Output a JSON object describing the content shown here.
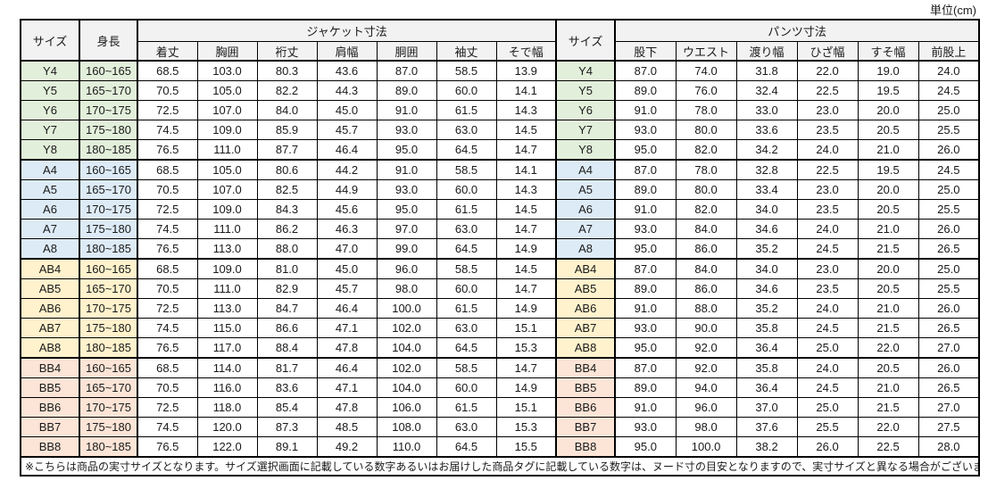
{
  "unit_label": "単位(cm)",
  "colors": {
    "header_bg": "#F2F2F2",
    "border": "#000000",
    "group_y": "#E2EFDA",
    "group_a": "#DDEBF7",
    "group_ab": "#FFF2CC",
    "group_bb": "#FCE4D6"
  },
  "table": {
    "size_header": "サイズ",
    "height_header": "身長",
    "jacket_section": "ジャケット寸法",
    "pants_section": "パンツ寸法",
    "jacket_columns": [
      "着丈",
      "胸囲",
      "裄丈",
      "肩幅",
      "胴囲",
      "袖丈",
      "そで幅"
    ],
    "pants_columns": [
      "股下",
      "ウエスト",
      "渡り幅",
      "ひざ幅",
      "すそ幅",
      "前股上"
    ],
    "groups": [
      {
        "name": "Y",
        "color": "#E2EFDA",
        "rows": [
          {
            "size": "Y4",
            "height": "160~165",
            "jacket": [
              "68.5",
              "103.0",
              "80.3",
              "43.6",
              "87.0",
              "58.5",
              "13.9"
            ],
            "pants": [
              "87.0",
              "74.0",
              "31.8",
              "22.0",
              "19.0",
              "24.0"
            ]
          },
          {
            "size": "Y5",
            "height": "165~170",
            "jacket": [
              "70.5",
              "105.0",
              "82.2",
              "44.3",
              "89.0",
              "60.0",
              "14.1"
            ],
            "pants": [
              "89.0",
              "76.0",
              "32.4",
              "22.5",
              "19.5",
              "24.5"
            ]
          },
          {
            "size": "Y6",
            "height": "170~175",
            "jacket": [
              "72.5",
              "107.0",
              "84.0",
              "45.0",
              "91.0",
              "61.5",
              "14.3"
            ],
            "pants": [
              "91.0",
              "78.0",
              "33.0",
              "23.0",
              "20.0",
              "25.0"
            ]
          },
          {
            "size": "Y7",
            "height": "175~180",
            "jacket": [
              "74.5",
              "109.0",
              "85.9",
              "45.7",
              "93.0",
              "63.0",
              "14.5"
            ],
            "pants": [
              "93.0",
              "80.0",
              "33.6",
              "23.5",
              "20.5",
              "25.5"
            ]
          },
          {
            "size": "Y8",
            "height": "180~185",
            "jacket": [
              "76.5",
              "111.0",
              "87.7",
              "46.4",
              "95.0",
              "64.5",
              "14.7"
            ],
            "pants": [
              "95.0",
              "82.0",
              "34.2",
              "24.0",
              "21.0",
              "26.0"
            ]
          }
        ]
      },
      {
        "name": "A",
        "color": "#DDEBF7",
        "rows": [
          {
            "size": "A4",
            "height": "160~165",
            "jacket": [
              "68.5",
              "105.0",
              "80.6",
              "44.2",
              "91.0",
              "58.5",
              "14.1"
            ],
            "pants": [
              "87.0",
              "78.0",
              "32.8",
              "22.5",
              "19.5",
              "24.5"
            ]
          },
          {
            "size": "A5",
            "height": "165~170",
            "jacket": [
              "70.5",
              "107.0",
              "82.5",
              "44.9",
              "93.0",
              "60.0",
              "14.3"
            ],
            "pants": [
              "89.0",
              "80.0",
              "33.4",
              "23.0",
              "20.0",
              "25.0"
            ]
          },
          {
            "size": "A6",
            "height": "170~175",
            "jacket": [
              "72.5",
              "109.0",
              "84.3",
              "45.6",
              "95.0",
              "61.5",
              "14.5"
            ],
            "pants": [
              "91.0",
              "82.0",
              "34.0",
              "23.5",
              "20.5",
              "25.5"
            ]
          },
          {
            "size": "A7",
            "height": "175~180",
            "jacket": [
              "74.5",
              "111.0",
              "86.2",
              "46.3",
              "97.0",
              "63.0",
              "14.7"
            ],
            "pants": [
              "93.0",
              "84.0",
              "34.6",
              "24.0",
              "21.0",
              "26.0"
            ]
          },
          {
            "size": "A8",
            "height": "180~185",
            "jacket": [
              "76.5",
              "113.0",
              "88.0",
              "47.0",
              "99.0",
              "64.5",
              "14.9"
            ],
            "pants": [
              "95.0",
              "86.0",
              "35.2",
              "24.5",
              "21.5",
              "26.5"
            ]
          }
        ]
      },
      {
        "name": "AB",
        "color": "#FFF2CC",
        "rows": [
          {
            "size": "AB4",
            "height": "160~165",
            "jacket": [
              "68.5",
              "109.0",
              "81.0",
              "45.0",
              "96.0",
              "58.5",
              "14.5"
            ],
            "pants": [
              "87.0",
              "84.0",
              "34.0",
              "23.0",
              "20.0",
              "25.0"
            ]
          },
          {
            "size": "AB5",
            "height": "165~170",
            "jacket": [
              "70.5",
              "111.0",
              "82.9",
              "45.7",
              "98.0",
              "60.0",
              "14.7"
            ],
            "pants": [
              "89.0",
              "86.0",
              "34.6",
              "23.5",
              "20.5",
              "25.5"
            ]
          },
          {
            "size": "AB6",
            "height": "170~175",
            "jacket": [
              "72.5",
              "113.0",
              "84.7",
              "46.4",
              "100.0",
              "61.5",
              "14.9"
            ],
            "pants": [
              "91.0",
              "88.0",
              "35.2",
              "24.0",
              "21.0",
              "26.0"
            ]
          },
          {
            "size": "AB7",
            "height": "175~180",
            "jacket": [
              "74.5",
              "115.0",
              "86.6",
              "47.1",
              "102.0",
              "63.0",
              "15.1"
            ],
            "pants": [
              "93.0",
              "90.0",
              "35.8",
              "24.5",
              "21.5",
              "26.5"
            ]
          },
          {
            "size": "AB8",
            "height": "180~185",
            "jacket": [
              "76.5",
              "117.0",
              "88.4",
              "47.8",
              "104.0",
              "64.5",
              "15.3"
            ],
            "pants": [
              "95.0",
              "92.0",
              "36.4",
              "25.0",
              "22.0",
              "27.0"
            ]
          }
        ]
      },
      {
        "name": "BB",
        "color": "#FCE4D6",
        "rows": [
          {
            "size": "BB4",
            "height": "160~165",
            "jacket": [
              "68.5",
              "114.0",
              "81.7",
              "46.4",
              "102.0",
              "58.5",
              "14.7"
            ],
            "pants": [
              "87.0",
              "92.0",
              "35.8",
              "24.0",
              "20.5",
              "26.0"
            ]
          },
          {
            "size": "BB5",
            "height": "165~170",
            "jacket": [
              "70.5",
              "116.0",
              "83.6",
              "47.1",
              "104.0",
              "60.0",
              "14.9"
            ],
            "pants": [
              "89.0",
              "94.0",
              "36.4",
              "24.5",
              "21.0",
              "26.5"
            ]
          },
          {
            "size": "BB6",
            "height": "170~175",
            "jacket": [
              "72.5",
              "118.0",
              "85.4",
              "47.8",
              "106.0",
              "61.5",
              "15.1"
            ],
            "pants": [
              "91.0",
              "96.0",
              "37.0",
              "25.0",
              "21.5",
              "27.0"
            ]
          },
          {
            "size": "BB7",
            "height": "175~180",
            "jacket": [
              "74.5",
              "120.0",
              "87.3",
              "48.5",
              "108.0",
              "63.0",
              "15.3"
            ],
            "pants": [
              "93.0",
              "98.0",
              "37.6",
              "25.5",
              "22.0",
              "27.5"
            ]
          },
          {
            "size": "BB8",
            "height": "180~185",
            "jacket": [
              "76.5",
              "122.0",
              "89.1",
              "49.2",
              "110.0",
              "64.5",
              "15.5"
            ],
            "pants": [
              "95.0",
              "100.0",
              "38.2",
              "26.0",
              "22.5",
              "28.0"
            ]
          }
        ]
      }
    ]
  },
  "footnote": "※こちらは商品の実寸サイズとなります。サイズ選択画面に記載している数字あるいはお届けした商品タグに記載している数字は、ヌード寸の目安となりますので、実寸サイズと異なる場合がございます。"
}
